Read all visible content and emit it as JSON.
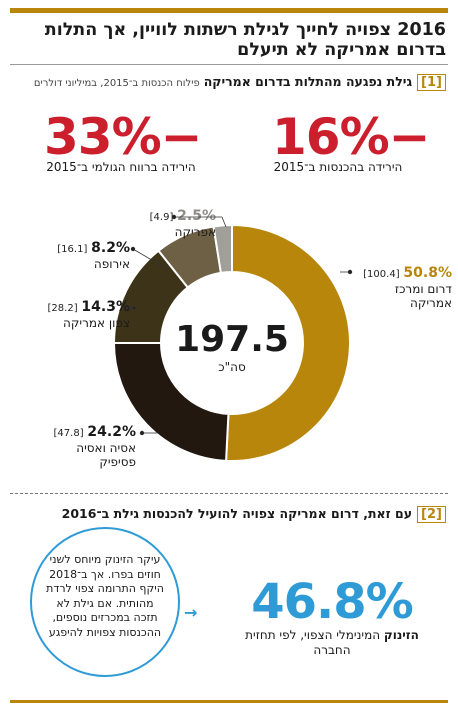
{
  "headline": "2016 צפויה לחייך לגילת רשתות לוויין, אך התלות בדרום אמריקה לא תיעלם",
  "section1": {
    "num": "1",
    "title": "גילת נפגעה מהתלות בדרום אמריקה",
    "subtitle": "פילוח הכנסות ב־2015, במיליוני דולרים"
  },
  "stat_left": {
    "value": "33%−",
    "caption": "הירידה ברווח הגולמי ב־2015"
  },
  "stat_right": {
    "value": "16%−",
    "caption": "הירידה בהכנסות ב־2015"
  },
  "chart_data": {
    "type": "pie",
    "title": "",
    "total_value": "197.5",
    "total_label": "סה\"כ",
    "slices": [
      {
        "name": "דרום ומרכז אמריקה",
        "pct": 50.8,
        "value": 100.4,
        "pct_label": "50.8%",
        "value_label": "[100.4]",
        "color": "#b8860b"
      },
      {
        "name": "אסיה ואסיה פסיפיק",
        "pct": 24.2,
        "value": 47.8,
        "pct_label": "24.2%",
        "value_label": "[47.8]",
        "color": "#23180f"
      },
      {
        "name": "צפון אמריקה",
        "pct": 14.3,
        "value": 28.2,
        "pct_label": "14.3%",
        "value_label": "[28.2]",
        "color": "#3d3318"
      },
      {
        "name": "אירופה",
        "pct": 8.2,
        "value": 16.1,
        "pct_label": "8.2%",
        "value_label": "[16.1]",
        "color": "#6e6045"
      },
      {
        "name": "אפריקה",
        "pct": 2.5,
        "value": 4.9,
        "pct_label": "2.5%",
        "value_label": "[4.9]",
        "color": "#a19f9a"
      }
    ]
  },
  "section2": {
    "num": "2",
    "title": "עם זאת, דרום אמריקה צפויה להועיל להכנסות גילת ב־2016"
  },
  "bubble_text": "עיקר הזינוק מיוחס לשני חוזים בפרו. אך ב־2018 היקף התרומה צפוי לרדת מהותית. אם גילת לא תזכה במכרזים נוספים, ההכנסות צפויות להיפגע",
  "stat_blue": {
    "value": "46.8%",
    "caption_bold": "הזינוק",
    "caption_rest": " המינימלי הצפוי, לפי תחזית החברה"
  },
  "colors": {
    "accent": "#b8860b",
    "red": "#cc1f2e",
    "blue": "#2f9bd6"
  }
}
